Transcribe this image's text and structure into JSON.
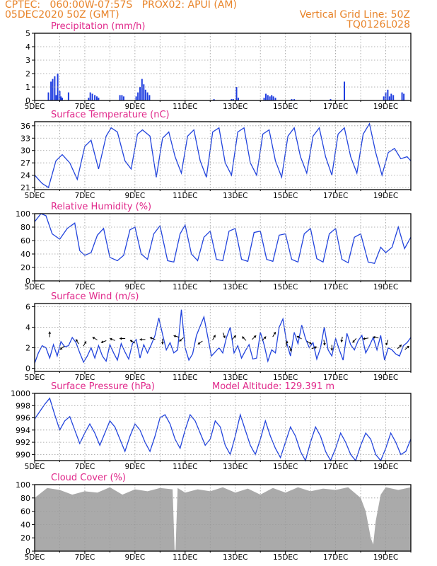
{
  "header": {
    "line1_left": "CPTEC:   060:00W-07:57S   PROX02: APUI (AM)",
    "line2_left": "05DEC2020 50Z (GMT)",
    "line1_right": "Vertical Grid Line: 50Z",
    "line2_right": "TQ0126L028"
  },
  "colors": {
    "title": "#e0288a",
    "header": "#e8842a",
    "series": "#2244dd",
    "bars": "#1f3de0",
    "cloud": "#aaaaaa",
    "axis": "#000000",
    "grid": "#999999"
  },
  "chart_data": [
    {
      "type": "bar",
      "title": "Precipitation (mm/h)",
      "ylim": [
        0,
        5
      ],
      "yticks": [
        0,
        1,
        2,
        3,
        4,
        5
      ],
      "xlim": [
        5.0,
        20.0
      ],
      "xticks": [
        "5DEC",
        "7DEC",
        "9DEC",
        "11DEC",
        "13DEC",
        "15DEC",
        "17DEC",
        "19DEC"
      ],
      "grid": true,
      "x": [
        5.55,
        5.65,
        5.72,
        5.8,
        5.86,
        5.92,
        6.0,
        6.05,
        6.1,
        6.35,
        7.15,
        7.22,
        7.3,
        7.4,
        7.48,
        7.55,
        8.4,
        8.48,
        8.55,
        9.05,
        9.12,
        9.2,
        9.28,
        9.35,
        9.42,
        9.5,
        9.58,
        12.15,
        12.85,
        12.92,
        13.05,
        13.12,
        14.15,
        14.22,
        14.3,
        14.38,
        14.45,
        14.52,
        14.6,
        15.25,
        15.35,
        16.8,
        17.35,
        18.92,
        19.0,
        19.08,
        19.15,
        19.22,
        19.3,
        19.65,
        19.72
      ],
      "values": [
        0.6,
        1.4,
        1.6,
        1.8,
        0.4,
        2.0,
        0.7,
        0.3,
        0.2,
        0.6,
        0.2,
        0.6,
        0.5,
        0.4,
        0.3,
        0.2,
        0.4,
        0.4,
        0.3,
        0.3,
        0.6,
        1.0,
        1.6,
        1.2,
        0.8,
        0.6,
        0.4,
        0.1,
        0.1,
        0.1,
        1.0,
        0.2,
        0.2,
        0.5,
        0.4,
        0.3,
        0.4,
        0.3,
        0.2,
        0.1,
        0.1,
        0.1,
        1.4,
        0.3,
        0.6,
        0.8,
        0.3,
        0.5,
        0.4,
        0.6,
        0.5
      ]
    },
    {
      "type": "line",
      "title": "Surface Temperature (nC)",
      "ylim": [
        20.5,
        37
      ],
      "yticks": [
        21,
        24,
        27,
        30,
        33,
        36
      ],
      "xlim": [
        5.0,
        20.0
      ],
      "xticks": [
        "5DEC",
        "7DEC",
        "9DEC",
        "11DEC",
        "13DEC",
        "15DEC",
        "17DEC",
        "19DEC"
      ],
      "grid": true,
      "x": [
        5.0,
        5.3,
        5.55,
        5.85,
        6.1,
        6.4,
        6.7,
        7.0,
        7.25,
        7.55,
        7.85,
        8.05,
        8.3,
        8.6,
        8.85,
        9.1,
        9.3,
        9.6,
        9.85,
        10.1,
        10.35,
        10.6,
        10.85,
        11.1,
        11.35,
        11.6,
        11.85,
        12.1,
        12.35,
        12.6,
        12.85,
        13.1,
        13.35,
        13.6,
        13.85,
        14.1,
        14.35,
        14.6,
        14.85,
        15.1,
        15.35,
        15.6,
        15.85,
        16.1,
        16.35,
        16.6,
        16.85,
        17.1,
        17.35,
        17.6,
        17.85,
        18.1,
        18.35,
        18.6,
        18.85,
        19.1,
        19.35,
        19.6,
        19.85,
        20.0
      ],
      "values": [
        24.0,
        22.0,
        21.0,
        27.5,
        29.0,
        27.0,
        23.0,
        31.0,
        32.5,
        25.5,
        33.5,
        35.5,
        34.5,
        27.5,
        25.5,
        34.0,
        35.0,
        33.5,
        23.5,
        33.0,
        34.5,
        28.5,
        24.5,
        33.5,
        35.0,
        27.5,
        23.5,
        34.5,
        35.5,
        27.0,
        24.0,
        34.5,
        35.5,
        27.0,
        24.0,
        34.0,
        35.0,
        27.5,
        23.5,
        33.5,
        35.5,
        28.5,
        24.5,
        33.5,
        35.5,
        28.5,
        24.0,
        34.0,
        35.5,
        28.5,
        24.5,
        34.0,
        36.5,
        29.5,
        24.0,
        29.5,
        30.5,
        28.0,
        28.5,
        27.5
      ]
    },
    {
      "type": "line",
      "title": "Relative Humidity (%)",
      "ylim": [
        0,
        100
      ],
      "yticks": [
        0,
        20,
        40,
        60,
        80,
        100
      ],
      "xlim": [
        5.0,
        20.0
      ],
      "xticks": [
        "5DEC",
        "7DEC",
        "9DEC",
        "11DEC",
        "13DEC",
        "15DEC",
        "17DEC",
        "19DEC"
      ],
      "grid": true,
      "x": [
        5.0,
        5.25,
        5.45,
        5.7,
        6.0,
        6.3,
        6.6,
        6.8,
        7.0,
        7.25,
        7.5,
        7.75,
        8.0,
        8.3,
        8.55,
        8.8,
        9.0,
        9.25,
        9.5,
        9.75,
        10.0,
        10.3,
        10.55,
        10.8,
        11.0,
        11.25,
        11.5,
        11.75,
        12.0,
        12.25,
        12.5,
        12.75,
        13.0,
        13.25,
        13.5,
        13.75,
        14.0,
        14.25,
        14.5,
        14.75,
        15.0,
        15.25,
        15.5,
        15.75,
        16.0,
        16.25,
        16.5,
        16.75,
        17.0,
        17.25,
        17.5,
        17.75,
        18.0,
        18.3,
        18.55,
        18.8,
        19.0,
        19.25,
        19.5,
        19.75,
        20.0
      ],
      "values": [
        88,
        100,
        97,
        70,
        62,
        78,
        86,
        45,
        38,
        42,
        68,
        78,
        35,
        30,
        38,
        76,
        80,
        40,
        32,
        70,
        82,
        30,
        28,
        70,
        83,
        40,
        30,
        65,
        74,
        32,
        30,
        74,
        78,
        32,
        29,
        72,
        74,
        32,
        29,
        68,
        70,
        32,
        28,
        70,
        78,
        33,
        28,
        70,
        78,
        32,
        27,
        65,
        70,
        28,
        26,
        50,
        42,
        50,
        80,
        48,
        65
      ]
    },
    {
      "type": "line",
      "title": "Surface Wind (m/s)",
      "ylim": [
        -0.3,
        6.3
      ],
      "yticks": [
        0,
        2,
        4,
        6
      ],
      "xlim": [
        5.0,
        20.0
      ],
      "xticks": [
        "5DEC",
        "7DEC",
        "9DEC",
        "11DEC",
        "13DEC",
        "15DEC",
        "17DEC",
        "19DEC"
      ],
      "grid": true,
      "x": [
        5.0,
        5.15,
        5.3,
        5.45,
        5.6,
        5.75,
        5.9,
        6.05,
        6.2,
        6.35,
        6.5,
        6.65,
        6.8,
        6.95,
        7.1,
        7.25,
        7.4,
        7.55,
        7.7,
        7.85,
        8.0,
        8.15,
        8.3,
        8.45,
        8.6,
        8.75,
        8.9,
        9.05,
        9.2,
        9.35,
        9.5,
        9.65,
        9.8,
        9.95,
        10.1,
        10.25,
        10.4,
        10.55,
        10.7,
        10.85,
        11.0,
        11.15,
        11.3,
        11.45,
        11.6,
        11.75,
        11.9,
        12.05,
        12.2,
        12.35,
        12.5,
        12.65,
        12.8,
        12.95,
        13.1,
        13.25,
        13.4,
        13.55,
        13.7,
        13.85,
        14.0,
        14.15,
        14.3,
        14.45,
        14.6,
        14.75,
        14.9,
        15.05,
        15.2,
        15.35,
        15.5,
        15.65,
        15.8,
        15.95,
        16.1,
        16.25,
        16.4,
        16.55,
        16.7,
        16.85,
        17.0,
        17.15,
        17.3,
        17.45,
        17.6,
        17.75,
        17.9,
        18.05,
        18.2,
        18.35,
        18.5,
        18.65,
        18.8,
        18.95,
        19.1,
        19.25,
        19.4,
        19.55,
        19.7,
        19.85,
        20.0
      ],
      "values": [
        0.5,
        1.5,
        2.2,
        2.0,
        1.0,
        2.3,
        1.2,
        2.6,
        2.1,
        2.2,
        3.0,
        2.5,
        1.5,
        0.6,
        1.2,
        2.0,
        1.0,
        2.2,
        1.2,
        0.7,
        2.3,
        1.5,
        0.8,
        2.4,
        1.6,
        0.9,
        2.4,
        2.8,
        1.0,
        2.3,
        1.5,
        2.3,
        3.2,
        4.9,
        3.3,
        1.8,
        2.5,
        1.5,
        1.8,
        5.7,
        2.0,
        0.8,
        1.4,
        3.2,
        4.1,
        5.0,
        3.1,
        1.2,
        1.6,
        2.0,
        1.5,
        3.0,
        4.0,
        1.5,
        2.2,
        1.0,
        1.7,
        2.3,
        0.9,
        1.0,
        3.5,
        2.3,
        0.7,
        1.8,
        1.5,
        4.0,
        4.8,
        2.5,
        1.2,
        3.5,
        2.4,
        4.2,
        2.9,
        2.0,
        2.5,
        0.9,
        2.0,
        4.0,
        1.8,
        1.2,
        2.9,
        1.8,
        0.8,
        3.4,
        2.3,
        1.8,
        2.7,
        3.2,
        1.5,
        2.2,
        3.0,
        1.8,
        3.2,
        0.8,
        2.0,
        1.8,
        1.4,
        1.2,
        2.2,
        2.5,
        3.0
      ],
      "arrows": [
        {
          "x": 5.6,
          "y": 3.3,
          "dir": 90
        },
        {
          "x": 6.1,
          "y": 2.0,
          "dir": 220
        },
        {
          "x": 6.7,
          "y": 2.6,
          "dir": 120
        },
        {
          "x": 7.0,
          "y": 2.4,
          "dir": 60
        },
        {
          "x": 7.4,
          "y": 2.9,
          "dir": 150
        },
        {
          "x": 7.75,
          "y": 2.6,
          "dir": 200
        },
        {
          "x": 8.1,
          "y": 2.8,
          "dir": 160
        },
        {
          "x": 8.5,
          "y": 2.9,
          "dir": 180
        },
        {
          "x": 8.9,
          "y": 2.6,
          "dir": 150
        },
        {
          "x": 9.3,
          "y": 2.8,
          "dir": 180
        },
        {
          "x": 9.7,
          "y": 2.9,
          "dir": 160
        },
        {
          "x": 10.1,
          "y": 2.6,
          "dir": 270
        },
        {
          "x": 10.65,
          "y": 3.1,
          "dir": 165
        },
        {
          "x": 10.85,
          "y": 2.8,
          "dir": 220
        },
        {
          "x": 11.6,
          "y": 2.5,
          "dir": 215
        },
        {
          "x": 12.15,
          "y": 3.0,
          "dir": 60
        },
        {
          "x": 12.55,
          "y": 3.2,
          "dir": 290
        },
        {
          "x": 12.95,
          "y": 3.0,
          "dir": 45
        },
        {
          "x": 13.35,
          "y": 2.9,
          "dir": 135
        },
        {
          "x": 13.75,
          "y": 3.0,
          "dir": 45
        },
        {
          "x": 14.15,
          "y": 2.9,
          "dir": 45
        },
        {
          "x": 14.55,
          "y": 3.3,
          "dir": 60
        },
        {
          "x": 15.05,
          "y": 2.4,
          "dir": 80
        },
        {
          "x": 15.2,
          "y": 1.9,
          "dir": 290
        },
        {
          "x": 15.55,
          "y": 3.0,
          "dir": 150
        },
        {
          "x": 15.95,
          "y": 2.5,
          "dir": 330
        },
        {
          "x": 16.15,
          "y": 2.0,
          "dir": 20
        },
        {
          "x": 16.55,
          "y": 2.5,
          "dir": 280
        },
        {
          "x": 16.85,
          "y": 2.0,
          "dir": 270
        },
        {
          "x": 17.25,
          "y": 2.8,
          "dir": 260
        },
        {
          "x": 17.75,
          "y": 2.7,
          "dir": 230
        },
        {
          "x": 18.2,
          "y": 2.9,
          "dir": 190
        },
        {
          "x": 18.6,
          "y": 3.0,
          "dir": 170
        },
        {
          "x": 19.05,
          "y": 2.5,
          "dir": 250
        },
        {
          "x": 19.55,
          "y": 2.1,
          "dir": 45
        },
        {
          "x": 19.85,
          "y": 2.0,
          "dir": 40
        }
      ]
    },
    {
      "type": "line",
      "title": "Surface Pressure (hPa)",
      "annotation": "Model Altitude: 129.391 m",
      "ylim": [
        989,
        1000
      ],
      "yticks": [
        990,
        992,
        994,
        996,
        998,
        1000
      ],
      "xlim": [
        5.0,
        20.0
      ],
      "xticks": [
        "5DEC",
        "7DEC",
        "9DEC",
        "11DEC",
        "13DEC",
        "15DEC",
        "17DEC",
        "19DEC"
      ],
      "grid": true,
      "x": [
        5.0,
        5.2,
        5.4,
        5.6,
        5.8,
        6.0,
        6.2,
        6.4,
        6.6,
        6.8,
        7.0,
        7.2,
        7.4,
        7.6,
        7.8,
        8.0,
        8.2,
        8.4,
        8.6,
        8.8,
        9.0,
        9.2,
        9.4,
        9.6,
        9.8,
        10.0,
        10.2,
        10.4,
        10.6,
        10.8,
        11.0,
        11.2,
        11.4,
        11.6,
        11.8,
        12.0,
        12.2,
        12.4,
        12.6,
        12.8,
        13.0,
        13.2,
        13.4,
        13.6,
        13.8,
        14.0,
        14.2,
        14.4,
        14.6,
        14.8,
        15.0,
        15.2,
        15.4,
        15.6,
        15.8,
        16.0,
        16.2,
        16.4,
        16.6,
        16.8,
        17.0,
        17.2,
        17.4,
        17.6,
        17.8,
        18.0,
        18.2,
        18.4,
        18.6,
        18.8,
        19.0,
        19.2,
        19.4,
        19.6,
        19.8,
        20.0
      ],
      "values": [
        995.8,
        997.0,
        998.2,
        999.2,
        996.5,
        994.0,
        995.5,
        996.2,
        994.0,
        991.8,
        993.5,
        995.0,
        993.5,
        991.5,
        993.5,
        995.5,
        994.5,
        992.5,
        990.5,
        993.0,
        995.0,
        994.0,
        992.0,
        990.5,
        993.0,
        996.0,
        996.5,
        995.0,
        992.5,
        991.0,
        994.0,
        996.5,
        995.5,
        993.5,
        991.5,
        992.5,
        995.5,
        994.5,
        991.5,
        990.0,
        993.0,
        996.5,
        994.0,
        991.5,
        990.0,
        992.5,
        995.5,
        993.0,
        991.0,
        989.5,
        992.0,
        994.5,
        993.0,
        990.5,
        989.0,
        992.0,
        994.5,
        993.0,
        990.5,
        989.0,
        991.0,
        993.5,
        992.0,
        990.0,
        989.0,
        991.5,
        993.5,
        992.5,
        990.0,
        989.0,
        991.0,
        993.5,
        992.0,
        990.0,
        990.5,
        992.5
      ]
    },
    {
      "type": "area",
      "title": "Cloud Cover (%)",
      "ylim": [
        0,
        100
      ],
      "yticks": [
        0,
        20,
        40,
        60,
        80,
        100
      ],
      "xlim": [
        5.0,
        20.0
      ],
      "xticks": [
        "5DEC",
        "7DEC",
        "9DEC",
        "11DEC",
        "13DEC",
        "15DEC",
        "17DEC",
        "19DEC"
      ],
      "grid": true,
      "x": [
        5.0,
        5.5,
        6.0,
        6.5,
        7.0,
        7.5,
        8.0,
        8.5,
        9.0,
        9.5,
        10.0,
        10.5,
        10.58,
        10.62,
        10.7,
        11.0,
        11.5,
        12.0,
        12.5,
        13.0,
        13.5,
        14.0,
        14.5,
        15.0,
        15.5,
        16.0,
        16.5,
        17.0,
        17.5,
        18.0,
        18.2,
        18.4,
        18.5,
        18.6,
        18.8,
        19.0,
        19.5,
        20.0
      ],
      "values": [
        80,
        95,
        92,
        85,
        90,
        88,
        96,
        85,
        93,
        90,
        95,
        93,
        2,
        2,
        95,
        88,
        93,
        90,
        96,
        88,
        94,
        85,
        95,
        88,
        96,
        90,
        94,
        92,
        96,
        80,
        60,
        20,
        10,
        45,
        85,
        96,
        92,
        96
      ]
    }
  ]
}
